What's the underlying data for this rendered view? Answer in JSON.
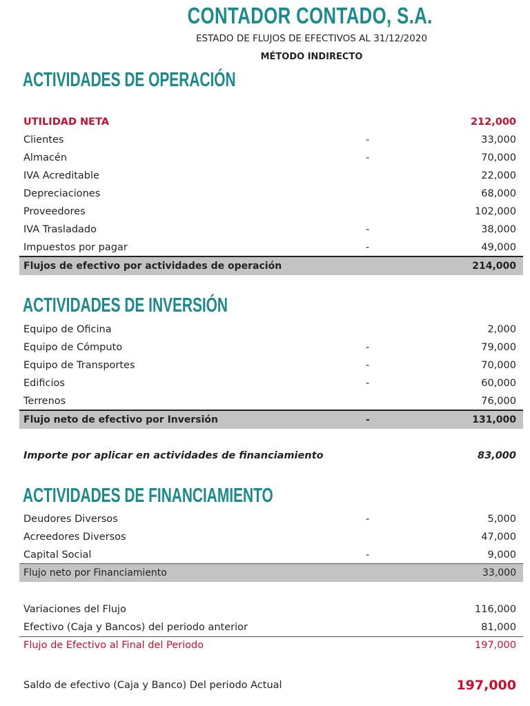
{
  "header": {
    "company": "CONTADOR CONTADO, S.A.",
    "subtitle": "ESTADO DE FLUJOS DE EFECTIVOS AL 31/12/2020",
    "method": "MÉTODO INDIRECTO"
  },
  "operacion": {
    "heading": "ACTIVIDADES DE OPERACIÓN",
    "rows": [
      {
        "label": "UTILIDAD NETA",
        "sign": "",
        "value": "212,000"
      },
      {
        "label": "Clientes",
        "sign": "-",
        "value": "33,000"
      },
      {
        "label": "Almacén",
        "sign": "-",
        "value": "70,000"
      },
      {
        "label": "IVA Acreditable",
        "sign": "",
        "value": "22,000"
      },
      {
        "label": "Depreciaciones",
        "sign": "",
        "value": "68,000"
      },
      {
        "label": "Proveedores",
        "sign": "",
        "value": "102,000"
      },
      {
        "label": "IVA Trasladado",
        "sign": "-",
        "value": "38,000"
      },
      {
        "label": "Impuestos por pagar",
        "sign": "-",
        "value": "49,000"
      }
    ],
    "total": {
      "label": "Flujos de efectivo por actividades de operación",
      "sign": "",
      "value": "214,000"
    }
  },
  "inversion": {
    "heading": "ACTIVIDADES DE INVERSIÓN",
    "rows": [
      {
        "label": "Equipo de Oficina",
        "sign": "",
        "value": "2,000"
      },
      {
        "label": "Equipo de Cómputo",
        "sign": "-",
        "value": "79,000"
      },
      {
        "label": "Equipo de Transportes",
        "sign": "-",
        "value": "70,000"
      },
      {
        "label": "Edificios",
        "sign": "-",
        "value": "60,000"
      },
      {
        "label": "Terrenos",
        "sign": "",
        "value": "76,000"
      }
    ],
    "total": {
      "label": "Flujo neto de efectivo por Inversión",
      "sign": "-",
      "value": "131,000"
    }
  },
  "importe": {
    "label": "Importe por aplicar en actividades de financiamiento",
    "value": "83,000"
  },
  "financiamiento": {
    "heading": "ACTIVIDADES DE FINANCIAMIENTO",
    "rows": [
      {
        "label": "Deudores Diversos",
        "sign": "-",
        "value": "5,000"
      },
      {
        "label": "Acreedores Diversos",
        "sign": "",
        "value": "47,000"
      },
      {
        "label": "Capital Social",
        "sign": "-",
        "value": "9,000"
      }
    ],
    "total": {
      "label": "Flujo neto por Financiamiento",
      "sign": "",
      "value": "33,000"
    }
  },
  "resumen": [
    {
      "label": "Variaciones del Flujo",
      "value": "116,000"
    },
    {
      "label": "Efectivo (Caja y Bancos) del periodo anterior",
      "value": "81,000"
    },
    {
      "label": "Flujo de Efectivo al Final del Periodo",
      "value": "197,000"
    }
  ],
  "saldo": {
    "label": "Saldo de efectivo (Caja y Banco) Del periodo Actual",
    "value": "197,000"
  },
  "colors": {
    "teal": "#1a8a8a",
    "red": "#c8102e",
    "total_bg": "#c3c3c3"
  }
}
